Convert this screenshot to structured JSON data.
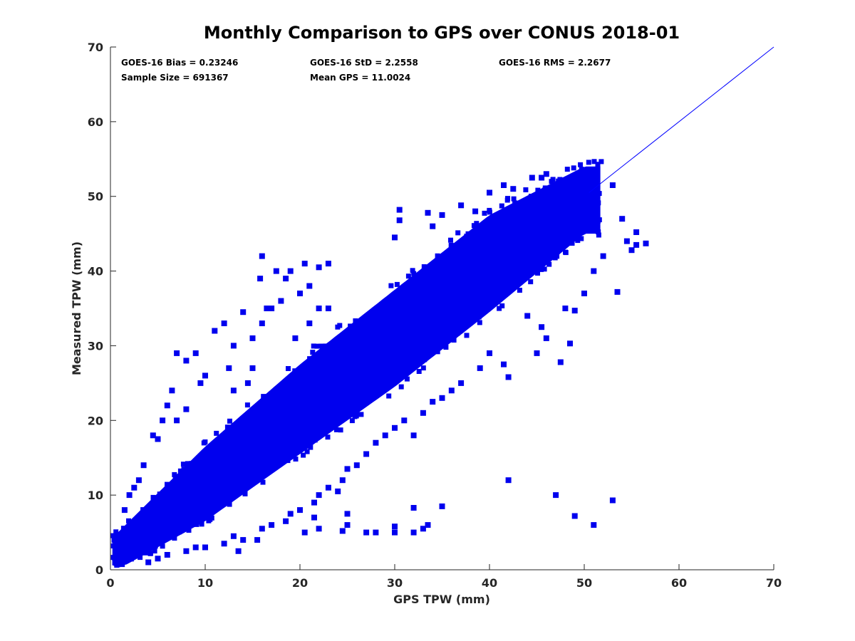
{
  "chart_data": {
    "type": "scatter",
    "title": "Monthly Comparison to GPS over CONUS 2018-01",
    "xlabel": "GPS TPW (mm)",
    "ylabel": "Measured TPW (mm)",
    "xlim": [
      0,
      70
    ],
    "ylim": [
      0,
      70
    ],
    "xticks": [
      0,
      10,
      20,
      30,
      40,
      50,
      60,
      70
    ],
    "yticks": [
      0,
      10,
      20,
      30,
      40,
      50,
      60,
      70
    ],
    "xtick_labels": [
      "0",
      "10",
      "20",
      "30",
      "40",
      "50",
      "60",
      "70"
    ],
    "ytick_labels": [
      "0",
      "10",
      "20",
      "30",
      "40",
      "50",
      "60",
      "70"
    ],
    "grid": false,
    "marker_color": "#0000ee",
    "line_color": "#0000ff",
    "reference_line": {
      "name": "1:1 line",
      "x": [
        50.5,
        70
      ],
      "y": [
        50.5,
        70
      ]
    },
    "annotations": [
      "GOES-16 Bias = 0.23246",
      "GOES-16 StD = 2.2558",
      "GOES-16 RMS = 2.2677",
      "Sample Size = 691367",
      "Mean GPS = 11.0024"
    ],
    "series": [
      {
        "name": "GOES-16 vs GPS",
        "description": "dense cloud of 691367 points along 1:1 line",
        "band_center": [
          [
            0.5,
            1.5
          ],
          [
            10,
            10.5
          ],
          [
            20,
            20.5
          ],
          [
            30,
            30.5
          ],
          [
            40,
            40.5
          ],
          [
            50,
            50
          ]
        ],
        "band_halfwidth_lower": [
          [
            0,
            1.5
          ],
          [
            10,
            4
          ],
          [
            20,
            5
          ],
          [
            30,
            6
          ],
          [
            40,
            6
          ],
          [
            50,
            5
          ]
        ],
        "band_halfwidth_upper": [
          [
            0,
            3
          ],
          [
            10,
            6
          ],
          [
            20,
            7
          ],
          [
            30,
            7
          ],
          [
            40,
            7
          ],
          [
            50,
            4
          ]
        ],
        "outliers": [
          [
            16,
            42
          ],
          [
            15.8,
            39
          ],
          [
            14,
            34.5
          ],
          [
            12,
            33
          ],
          [
            11,
            32
          ],
          [
            9,
            29
          ],
          [
            8,
            28
          ],
          [
            7,
            29
          ],
          [
            17.5,
            40
          ],
          [
            18.5,
            39
          ],
          [
            19,
            40
          ],
          [
            20.5,
            41
          ],
          [
            22,
            40.5
          ],
          [
            23,
            41
          ],
          [
            21,
            38
          ],
          [
            18,
            36
          ],
          [
            17,
            35
          ],
          [
            16,
            33
          ],
          [
            15,
            31
          ],
          [
            13,
            30
          ],
          [
            12.5,
            27
          ],
          [
            10,
            26
          ],
          [
            9.5,
            25
          ],
          [
            6.5,
            24
          ],
          [
            6,
            22
          ],
          [
            5.5,
            20
          ],
          [
            7,
            20
          ],
          [
            8,
            21.5
          ],
          [
            4.5,
            18
          ],
          [
            5,
            17.5
          ],
          [
            3.5,
            14
          ],
          [
            2.5,
            11
          ],
          [
            2,
            10
          ],
          [
            1.5,
            8
          ],
          [
            3,
            12
          ],
          [
            13,
            24
          ],
          [
            14.5,
            25
          ],
          [
            15,
            27
          ],
          [
            20,
            37
          ],
          [
            16.5,
            35
          ],
          [
            19.5,
            31
          ],
          [
            22,
            35
          ],
          [
            21,
            33
          ],
          [
            23,
            35
          ],
          [
            30.5,
            48.2
          ],
          [
            30.5,
            46.8
          ],
          [
            33.5,
            47.8
          ],
          [
            35,
            47.5
          ],
          [
            34,
            46
          ],
          [
            30,
            44.5
          ],
          [
            37,
            48.8
          ],
          [
            38.5,
            48
          ],
          [
            40,
            50.5
          ],
          [
            41.5,
            51.5
          ],
          [
            42.5,
            51
          ],
          [
            44.5,
            52.5
          ],
          [
            45.5,
            52.5
          ],
          [
            46,
            53
          ],
          [
            47.5,
            52
          ],
          [
            48.5,
            51
          ],
          [
            49.5,
            51
          ],
          [
            53,
            51.5
          ],
          [
            54,
            47
          ],
          [
            55.5,
            45.2
          ],
          [
            56.5,
            43.7
          ],
          [
            55.5,
            43.5
          ],
          [
            55,
            42.8
          ],
          [
            54.5,
            44
          ],
          [
            53.5,
            37.2
          ],
          [
            52,
            42
          ],
          [
            51,
            40
          ],
          [
            50,
            37
          ],
          [
            48,
            35
          ],
          [
            49,
            34.7
          ],
          [
            48.5,
            30.3
          ],
          [
            47.5,
            27.8
          ],
          [
            46,
            31
          ],
          [
            45,
            29
          ],
          [
            45.5,
            32.5
          ],
          [
            44,
            34
          ],
          [
            42,
            25.8
          ],
          [
            41.5,
            27.5
          ],
          [
            40,
            29
          ],
          [
            39,
            27
          ],
          [
            37,
            25
          ],
          [
            36,
            24
          ],
          [
            35,
            23
          ],
          [
            34,
            22.5
          ],
          [
            33,
            21
          ],
          [
            32,
            18
          ],
          [
            31,
            20
          ],
          [
            30,
            19
          ],
          [
            29,
            18
          ],
          [
            28,
            17
          ],
          [
            27,
            15.5
          ],
          [
            26,
            14
          ],
          [
            25,
            13.5
          ],
          [
            24.5,
            12
          ],
          [
            24,
            10.5
          ],
          [
            23,
            11
          ],
          [
            22,
            10
          ],
          [
            21.5,
            9
          ],
          [
            20,
            8
          ],
          [
            19,
            7.5
          ],
          [
            18.5,
            6.5
          ],
          [
            17,
            6
          ],
          [
            16,
            5.5
          ],
          [
            14,
            4
          ],
          [
            13,
            4.5
          ],
          [
            12,
            3.5
          ],
          [
            10,
            3
          ],
          [
            9,
            3
          ],
          [
            8,
            2.5
          ],
          [
            6,
            2
          ],
          [
            5,
            1.5
          ],
          [
            4,
            1
          ],
          [
            13.5,
            2.5
          ],
          [
            15.5,
            4
          ],
          [
            20.5,
            5
          ],
          [
            21.5,
            7
          ],
          [
            22,
            5.5
          ],
          [
            25,
            6
          ],
          [
            25,
            7.5
          ],
          [
            24.5,
            5.2
          ],
          [
            27,
            5
          ],
          [
            28,
            5
          ],
          [
            30,
            5.8
          ],
          [
            30,
            5
          ],
          [
            32,
            5
          ],
          [
            32,
            8.3
          ],
          [
            33.5,
            6
          ],
          [
            33,
            5.5
          ],
          [
            35,
            8.5
          ],
          [
            42,
            12
          ],
          [
            47,
            10
          ],
          [
            49,
            7.2
          ],
          [
            51,
            6
          ],
          [
            53,
            9.3
          ]
        ]
      }
    ]
  }
}
